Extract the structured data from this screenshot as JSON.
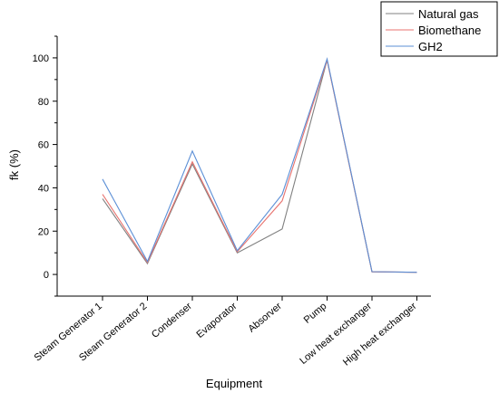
{
  "chart_data": {
    "type": "line",
    "title": "",
    "xlabel": "Equipment",
    "ylabel": "fk (%)",
    "categories": [
      "Steam Generator 1",
      "Steam Generator 2",
      "Condenser",
      "Evaporator",
      "Absorver",
      "Pump",
      "Low heat exchanger",
      "High heat exchanger"
    ],
    "ylim": [
      -10,
      110
    ],
    "yticks": [
      0,
      20,
      40,
      60,
      80,
      100
    ],
    "legend_position": "top-right",
    "grid": false,
    "series": [
      {
        "name": "Natural gas",
        "color": "#808080",
        "values": [
          35,
          5,
          51,
          10,
          21,
          99,
          1.2,
          1.0
        ]
      },
      {
        "name": "Biomethane",
        "color": "#e8736f",
        "values": [
          37,
          5.5,
          52,
          10.5,
          34,
          99,
          1.2,
          1.0
        ]
      },
      {
        "name": "GH2",
        "color": "#5b8fd6",
        "values": [
          44,
          6,
          57,
          11,
          37,
          99.5,
          1.3,
          1.0
        ]
      }
    ]
  }
}
